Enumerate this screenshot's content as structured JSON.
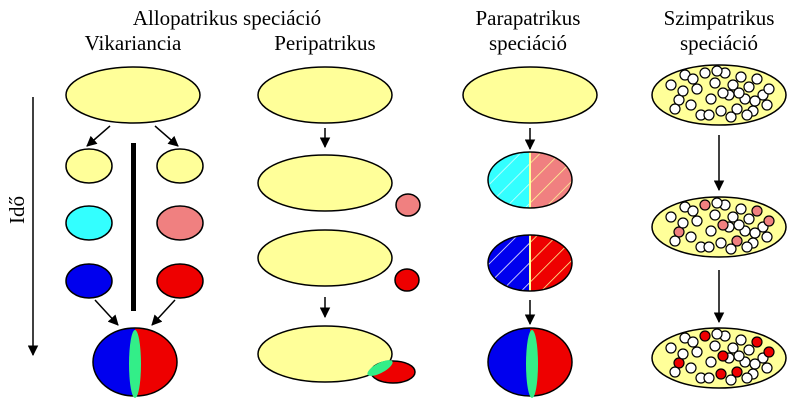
{
  "headings": {
    "allopatric": "Allopatrikus speciáció",
    "vicariance": "Vikariancia",
    "peripatric": "Peripatrikus",
    "parapatric_line1": "Parapatrikus",
    "parapatric_line2": "speciáció",
    "sympatric_line1": "Szimpatrikus",
    "sympatric_line2": "speciáció"
  },
  "time_axis_label": "Idő",
  "colors": {
    "population": "#ffff99",
    "cyan": "#33ffff",
    "pink": "#f08080",
    "blue": "#0000ee",
    "red": "#ee0000",
    "contact_zone": "#33ee88",
    "outline": "#000000"
  }
}
